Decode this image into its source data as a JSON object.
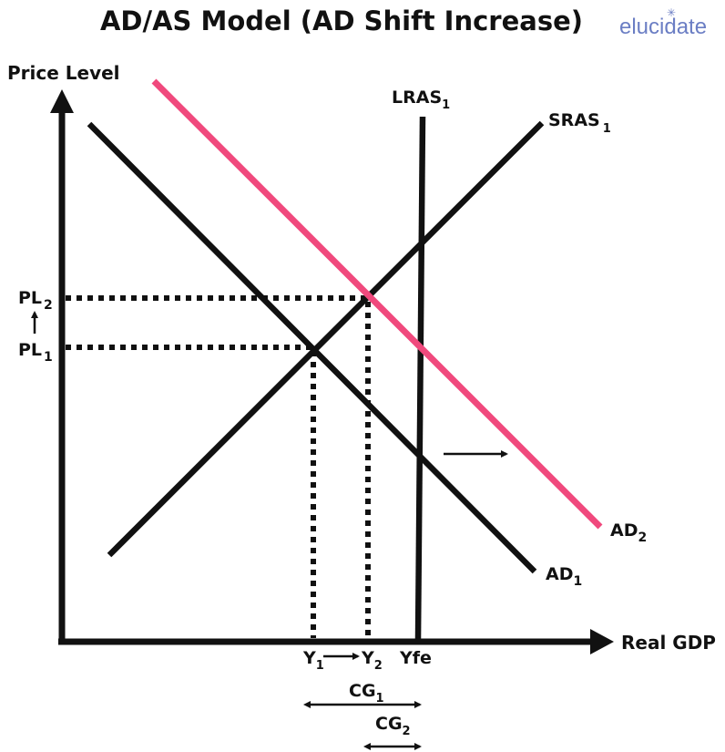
{
  "title": "AD/AS Model (AD Shift Increase)",
  "logo": {
    "text": "elucidate",
    "mark": "✳"
  },
  "axes": {
    "y_label": "Price Level",
    "x_label": "Real GDP"
  },
  "curves": {
    "lras": {
      "name": "LRAS",
      "sub": "1"
    },
    "sras": {
      "name": "SRAS",
      "sub": "1"
    },
    "ad1": {
      "name": "AD",
      "sub": "1"
    },
    "ad2": {
      "name": "AD",
      "sub": "2",
      "color": "#f0497d"
    }
  },
  "price_levels": [
    {
      "name": "PL",
      "sub": "2"
    },
    {
      "name": "PL",
      "sub": "1"
    }
  ],
  "outputs": [
    {
      "name": "Y",
      "sub": "1"
    },
    {
      "name": "Y",
      "sub": "2"
    },
    {
      "name": "Yfe",
      "sub": ""
    }
  ],
  "gaps": [
    {
      "name": "CG",
      "sub": "1"
    },
    {
      "name": "CG",
      "sub": "2"
    }
  ]
}
